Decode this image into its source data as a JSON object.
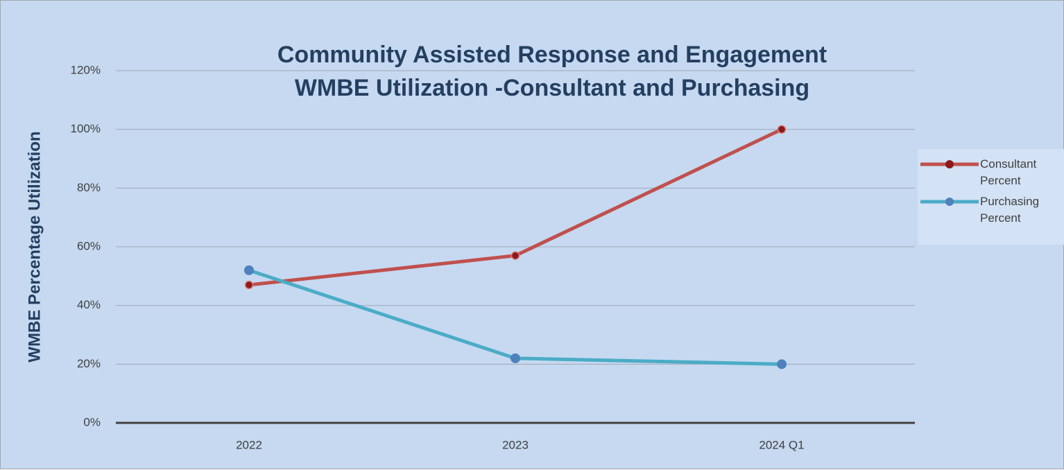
{
  "chart_data": {
    "type": "line",
    "title": [
      "Community Assisted Response and Engagement",
      "WMBE Utilization -Consultant and Purchasing"
    ],
    "ylabel": "WMBE Percentage Utilization",
    "categories": [
      "2022",
      "2023",
      "2024 Q1"
    ],
    "series": [
      {
        "name": "Consultant Percent",
        "color": "#c0504d",
        "marker_color": "#8b1a1a",
        "values": [
          47,
          57,
          100
        ]
      },
      {
        "name": "Purchasing Percent",
        "color": "#4bacc6",
        "marker_color": "#4f81bd",
        "values": [
          52,
          22,
          20
        ]
      }
    ],
    "ylim": [
      0,
      120
    ],
    "yticks": [
      {
        "value": 0,
        "label": "0%"
      },
      {
        "value": 20,
        "label": "20%"
      },
      {
        "value": 40,
        "label": "40%"
      },
      {
        "value": 60,
        "label": "60%"
      },
      {
        "value": 80,
        "label": "80%"
      },
      {
        "value": 100,
        "label": "100%"
      },
      {
        "value": 120,
        "label": "120%"
      }
    ],
    "grid": true,
    "legend": "right"
  }
}
